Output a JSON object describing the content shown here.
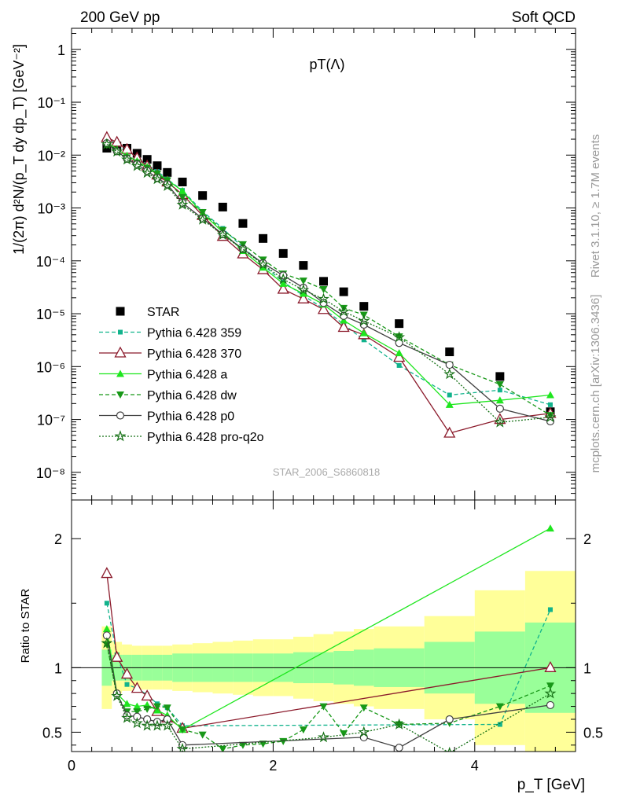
{
  "header": {
    "left": "200 GeV pp",
    "right": "Soft QCD"
  },
  "side_labels": {
    "rivet": "Rivet 3.1.10, ≥ 1.7M events",
    "mcplots": "mcplots.cern.ch [arXiv:1306.3436]"
  },
  "watermark": "STAR_2006_S6860818",
  "colors": {
    "STAR": "#000000",
    "Pythia 6.428 359": "#12b38c",
    "Pythia 6.428 370": "#8b1a2b",
    "Pythia 6.428 a": "#1ee61e",
    "Pythia 6.428 dw": "#189818",
    "Pythia 6.428 p0": "#404040",
    "Pythia 6.428 pro-q2o": "#157015",
    "band_inner": "#99ff99",
    "band_outer": "#ffff99"
  },
  "chart_data": [
    {
      "panel": "main",
      "type": "scatter",
      "title": "pT(Λ)",
      "ylabel": "1/(2π) d²N/(p_T dy dp_T) [GeV⁻²]",
      "yscale": "log",
      "xlim": [
        0,
        5.0
      ],
      "ylim": [
        3e-09,
        2.5
      ],
      "ytick_labels": [
        "10⁻⁸",
        "10⁻⁷",
        "10⁻⁶",
        "10⁻⁵",
        "10⁻⁴",
        "10⁻³",
        "10⁻²",
        "10⁻¹",
        "1"
      ],
      "legend_position": "lower-left",
      "series": [
        {
          "name": "STAR",
          "x": [
            0.35,
            0.45,
            0.55,
            0.65,
            0.75,
            0.85,
            0.95,
            1.1,
            1.3,
            1.5,
            1.7,
            1.9,
            2.1,
            2.3,
            2.5,
            2.7,
            2.9,
            3.25,
            3.75,
            4.25,
            4.75
          ],
          "y": [
            0.0135,
            0.0148,
            0.0135,
            0.0108,
            0.0083,
            0.0063,
            0.0047,
            0.0031,
            0.00172,
            0.00104,
            0.00051,
            0.000265,
            0.000138,
            8.2e-05,
            4.1e-05,
            2.6e-05,
            1.38e-05,
            6.5e-06,
            1.9e-06,
            6.5e-07,
            1.4e-07
          ]
        },
        {
          "name": "Pythia 6.428 359",
          "x": [
            0.35,
            0.45,
            0.55,
            0.65,
            0.75,
            0.85,
            0.95,
            1.1,
            1.3,
            1.5,
            1.7,
            1.9,
            2.1,
            2.3,
            2.5,
            2.7,
            2.9,
            3.25,
            3.75,
            4.25,
            4.75
          ],
          "y": [
            0.0205,
            0.0163,
            0.0118,
            0.0091,
            0.0066,
            0.0049,
            0.0035,
            0.00215,
            0.00086,
            0.00041,
            0.00018,
            8.3e-05,
            4e-05,
            2.2e-05,
            1.25e-05,
            6.3e-06,
            3.2e-06,
            1.05e-06,
            2.9e-07,
            3.6e-07,
            1.9e-07
          ]
        },
        {
          "name": "Pythia 6.428 370",
          "x": [
            0.35,
            0.45,
            0.55,
            0.65,
            0.75,
            0.85,
            0.95,
            1.1,
            1.3,
            1.5,
            1.7,
            1.9,
            2.1,
            2.3,
            2.5,
            2.7,
            2.9,
            3.25,
            3.75,
            4.25,
            4.75
          ],
          "y": [
            0.0215,
            0.0175,
            0.0128,
            0.0088,
            0.0062,
            0.0042,
            0.0031,
            0.0018,
            0.00072,
            0.00029,
            0.000135,
            6.8e-05,
            2.9e-05,
            1.9e-05,
            1.2e-05,
            5.5e-06,
            4e-06,
            1.5e-06,
            5.5e-08,
            1e-07,
            1.3e-07
          ]
        },
        {
          "name": "Pythia 6.428 a",
          "x": [
            0.35,
            0.45,
            0.55,
            0.65,
            0.75,
            0.85,
            0.95,
            1.1,
            1.3,
            1.5,
            1.7,
            1.9,
            2.1,
            2.3,
            2.5,
            2.7,
            2.9,
            3.25,
            3.75,
            4.25,
            4.75
          ],
          "y": [
            0.0175,
            0.013,
            0.0098,
            0.0077,
            0.006,
            0.0045,
            0.0034,
            0.0021,
            0.00079,
            0.00035,
            0.000155,
            7.5e-05,
            3.7e-05,
            2.4e-05,
            1.5e-05,
            7.5e-06,
            4.3e-06,
            1.8e-06,
            1.9e-07,
            2.3e-07,
            2.9e-07
          ]
        },
        {
          "name": "Pythia 6.428 dw",
          "x": [
            0.35,
            0.45,
            0.55,
            0.65,
            0.75,
            0.85,
            0.95,
            1.1,
            1.3,
            1.5,
            1.7,
            1.9,
            2.1,
            2.3,
            2.5,
            2.7,
            2.9,
            3.25,
            3.75,
            4.25,
            4.75
          ],
          "y": [
            0.0155,
            0.0117,
            0.009,
            0.0072,
            0.0057,
            0.0044,
            0.0033,
            0.0016,
            0.00083,
            0.00038,
            0.000205,
            0.000105,
            5.7e-05,
            4.2e-05,
            2.9e-05,
            1.28e-05,
            9.5e-06,
            3.7e-06,
            1.08e-06,
            4.6e-07,
            1.2e-07
          ]
        },
        {
          "name": "Pythia 6.428 p0",
          "x": [
            0.35,
            0.45,
            0.55,
            0.65,
            0.75,
            0.85,
            0.95,
            1.1,
            1.3,
            1.5,
            1.7,
            1.9,
            2.1,
            2.3,
            2.5,
            2.7,
            2.9,
            3.25,
            3.75,
            4.25,
            4.75
          ],
          "y": [
            0.0168,
            0.0118,
            0.0085,
            0.0067,
            0.005,
            0.0037,
            0.0028,
            0.00125,
            0.00063,
            0.00032,
            0.000168,
            9e-05,
            5.3e-05,
            3.1e-05,
            1.6e-05,
            9.1e-06,
            6.2e-06,
            2.8e-06,
            1.08e-06,
            1.6e-07,
            9.2e-08
          ]
        },
        {
          "name": "Pythia 6.428 pro-q2o",
          "x": [
            0.35,
            0.45,
            0.55,
            0.65,
            0.75,
            0.85,
            0.95,
            1.1,
            1.3,
            1.5,
            1.7,
            1.9,
            2.1,
            2.3,
            2.5,
            2.7,
            2.9,
            3.25,
            3.75,
            4.25,
            4.75
          ],
          "y": [
            0.016,
            0.0116,
            0.0082,
            0.0062,
            0.0046,
            0.0035,
            0.0026,
            0.00115,
            0.0006,
            0.00031,
            0.000165,
            8.5e-05,
            4.5e-05,
            2.8e-05,
            1.9e-05,
            1.1e-05,
            7.3e-06,
            3.6e-06,
            7.2e-07,
            8.8e-08,
            1.1e-07
          ]
        }
      ]
    },
    {
      "panel": "ratio",
      "type": "line",
      "ylabel": "Ratio to STAR",
      "xlabel": "p_T [GeV]",
      "xlim": [
        0,
        5.0
      ],
      "ylim": [
        0.35,
        2.3
      ],
      "xtick_labels": [
        "0",
        "2",
        "4"
      ],
      "ytick_labels": [
        "0.5",
        "1",
        "2"
      ],
      "bands": {
        "edges": [
          0.3,
          0.4,
          0.5,
          0.6,
          0.7,
          0.8,
          0.9,
          1.0,
          1.2,
          1.4,
          1.6,
          1.8,
          2.0,
          2.2,
          2.4,
          2.6,
          2.8,
          3.0,
          3.5,
          4.0,
          4.5,
          5.0
        ],
        "inner": [
          0.14,
          0.1,
          0.1,
          0.1,
          0.1,
          0.1,
          0.1,
          0.11,
          0.11,
          0.11,
          0.11,
          0.11,
          0.11,
          0.12,
          0.12,
          0.13,
          0.14,
          0.15,
          0.2,
          0.28,
          0.35,
          0.35
        ],
        "outer": [
          0.32,
          0.2,
          0.18,
          0.17,
          0.17,
          0.17,
          0.17,
          0.18,
          0.19,
          0.2,
          0.21,
          0.22,
          0.22,
          0.24,
          0.26,
          0.28,
          0.3,
          0.32,
          0.4,
          0.6,
          0.75,
          0.8
        ]
      },
      "series": [
        {
          "name": "Pythia 6.428 359",
          "x": [
            0.35,
            0.45,
            0.55,
            0.65,
            0.75,
            0.85,
            0.95,
            1.1,
            4.25,
            4.75
          ],
          "y": [
            1.5,
            1.1,
            0.87,
            0.84,
            0.79,
            0.72,
            0.69,
            0.55,
            0.56,
            1.45
          ]
        },
        {
          "name": "Pythia 6.428 370",
          "x": [
            0.35,
            0.45,
            0.55,
            0.65,
            0.75,
            0.85,
            0.95,
            1.1,
            4.75
          ],
          "y": [
            1.73,
            1.08,
            0.95,
            0.84,
            0.78,
            0.66,
            0.61,
            0.53,
            1.0
          ]
        },
        {
          "name": "Pythia 6.428 a",
          "x": [
            0.35,
            0.45,
            0.55,
            0.65,
            0.75,
            0.85,
            0.95,
            1.1,
            4.75
          ],
          "y": [
            1.3,
            0.8,
            0.72,
            0.7,
            0.71,
            0.67,
            0.63,
            0.52,
            2.08
          ]
        },
        {
          "name": "Pythia 6.428 dw",
          "x": [
            0.35,
            0.45,
            0.55,
            0.65,
            0.75,
            0.85,
            0.95,
            1.1,
            1.3,
            1.5,
            1.7,
            1.9,
            2.1,
            2.3,
            2.5,
            2.7,
            2.9,
            3.25,
            3.75,
            4.25,
            4.75
          ],
          "y": [
            1.18,
            0.79,
            0.66,
            0.66,
            0.68,
            0.7,
            0.69,
            0.52,
            0.48,
            0.37,
            0.4,
            0.41,
            0.43,
            0.52,
            0.7,
            0.49,
            0.69,
            0.56,
            0.57,
            0.7,
            0.86
          ]
        },
        {
          "name": "Pythia 6.428 p0",
          "x": [
            0.35,
            0.45,
            0.55,
            0.65,
            0.75,
            0.85,
            0.95,
            1.1,
            2.9,
            3.25,
            3.75,
            4.75
          ],
          "y": [
            1.25,
            0.8,
            0.63,
            0.62,
            0.6,
            0.58,
            0.6,
            0.4,
            0.46,
            0.38,
            0.6,
            0.71
          ]
        },
        {
          "name": "Pythia 6.428 pro-q2o",
          "x": [
            0.35,
            0.45,
            0.55,
            0.65,
            0.75,
            0.85,
            0.95,
            1.1,
            2.5,
            2.9,
            3.25,
            3.75,
            4.75
          ],
          "y": [
            1.19,
            0.78,
            0.61,
            0.57,
            0.55,
            0.55,
            0.55,
            0.37,
            0.46,
            0.5,
            0.56,
            0.34,
            0.8
          ]
        }
      ]
    }
  ]
}
